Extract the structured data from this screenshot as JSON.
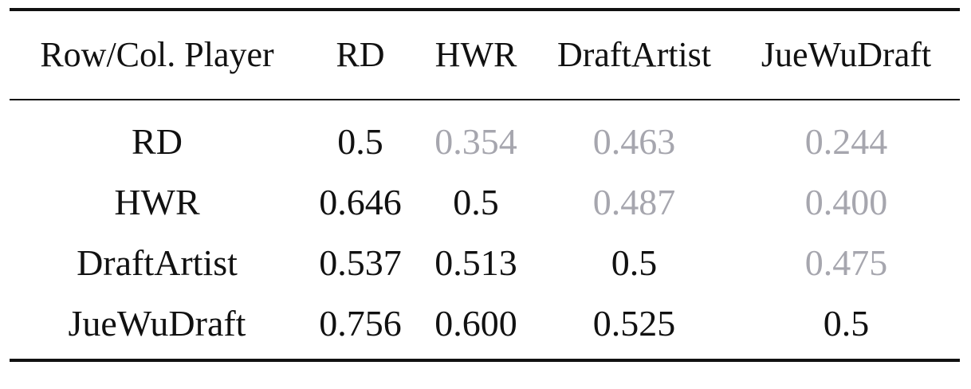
{
  "table": {
    "columns": [
      "Row/Col. Player",
      "RD",
      "HWR",
      "DraftArtist",
      "JueWuDraft"
    ],
    "rows": [
      {
        "label": "RD",
        "cells": [
          {
            "value": "0.5",
            "dim": false
          },
          {
            "value": "0.354",
            "dim": true
          },
          {
            "value": "0.463",
            "dim": true
          },
          {
            "value": "0.244",
            "dim": true
          }
        ]
      },
      {
        "label": "HWR",
        "cells": [
          {
            "value": "0.646",
            "dim": false
          },
          {
            "value": "0.5",
            "dim": false
          },
          {
            "value": "0.487",
            "dim": true
          },
          {
            "value": "0.400",
            "dim": true
          }
        ]
      },
      {
        "label": "DraftArtist",
        "cells": [
          {
            "value": "0.537",
            "dim": false
          },
          {
            "value": "0.513",
            "dim": false
          },
          {
            "value": "0.5",
            "dim": false
          },
          {
            "value": "0.475",
            "dim": true
          }
        ]
      },
      {
        "label": "JueWuDraft",
        "cells": [
          {
            "value": "0.756",
            "dim": false
          },
          {
            "value": "0.600",
            "dim": false
          },
          {
            "value": "0.525",
            "dim": false
          },
          {
            "value": "0.5",
            "dim": false
          }
        ]
      }
    ],
    "colors": {
      "text": "#111111",
      "dim_text": "#a6a6ae",
      "rule": "#111111"
    }
  }
}
